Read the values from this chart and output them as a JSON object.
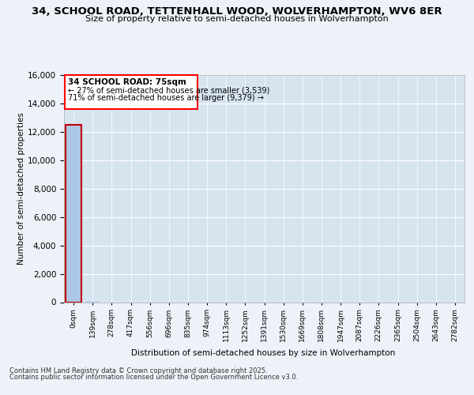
{
  "title": "34, SCHOOL ROAD, TETTENHALL WOOD, WOLVERHAMPTON, WV6 8ER",
  "subtitle": "Size of property relative to semi-detached houses in Wolverhampton",
  "xlabel": "Distribution of semi-detached houses by size in Wolverhampton",
  "ylabel": "Number of semi-detached properties",
  "annotation_line1": "34 SCHOOL ROAD: 75sqm",
  "annotation_line2": "← 27% of semi-detached houses are smaller (3,539)",
  "annotation_line3": "71% of semi-detached houses are larger (9,379) →",
  "footer1": "Contains HM Land Registry data © Crown copyright and database right 2025.",
  "footer2": "Contains public sector information licensed under the Open Government Licence v3.0.",
  "categories": [
    "0sqm",
    "139sqm",
    "278sqm",
    "417sqm",
    "556sqm",
    "696sqm",
    "835sqm",
    "974sqm",
    "1113sqm",
    "1252sqm",
    "1391sqm",
    "1530sqm",
    "1669sqm",
    "1808sqm",
    "1947sqm",
    "2087sqm",
    "2226sqm",
    "2365sqm",
    "2504sqm",
    "2643sqm",
    "2782sqm"
  ],
  "values": [
    12500,
    100,
    50,
    30,
    20,
    15,
    10,
    8,
    5,
    4,
    3,
    2,
    2,
    2,
    1,
    1,
    1,
    1,
    1,
    1,
    1
  ],
  "bar_color": "#adc6e5",
  "highlight_color": "#c00000",
  "property_bin_index": 0,
  "ylim": [
    0,
    16000
  ],
  "yticks": [
    0,
    2000,
    4000,
    6000,
    8000,
    10000,
    12000,
    14000,
    16000
  ],
  "annotation_box_color": "#ff0000",
  "background_color": "#edf2f9",
  "plot_background": "#d6e4f0"
}
